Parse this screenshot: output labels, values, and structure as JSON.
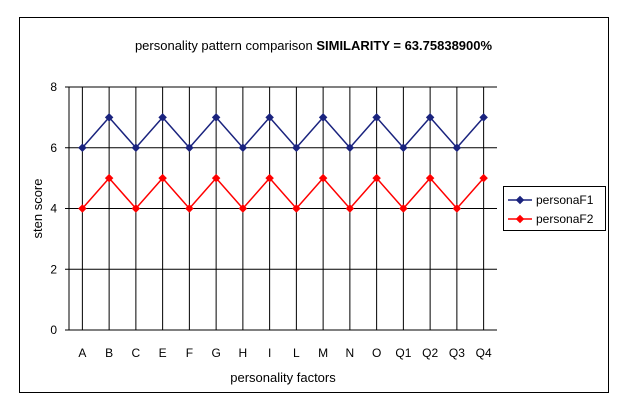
{
  "chart_data": {
    "type": "line",
    "title_prefix": "personality pattern comparison ",
    "title_bold": "SIMILARITY = 63.75838900%",
    "xlabel": "personality factors",
    "ylabel": "sten score",
    "categories": [
      "A",
      "B",
      "C",
      "E",
      "F",
      "G",
      "H",
      "I",
      "L",
      "M",
      "N",
      "O",
      "Q1",
      "Q2",
      "Q3",
      "Q4"
    ],
    "ylim": [
      0,
      8
    ],
    "yticks": [
      0,
      2,
      4,
      6,
      8
    ],
    "grid": "vertical and horizontal",
    "legend_position": "right",
    "series": [
      {
        "name": "personaF1",
        "color": "#1a237e",
        "values": [
          6,
          7,
          6,
          7,
          6,
          7,
          6,
          7,
          6,
          7,
          6,
          7,
          6,
          7,
          6,
          7
        ]
      },
      {
        "name": "personaF2",
        "color": "#ff0000",
        "values": [
          4,
          5,
          4,
          5,
          4,
          5,
          4,
          5,
          4,
          5,
          4,
          5,
          4,
          5,
          4,
          5
        ]
      }
    ]
  }
}
